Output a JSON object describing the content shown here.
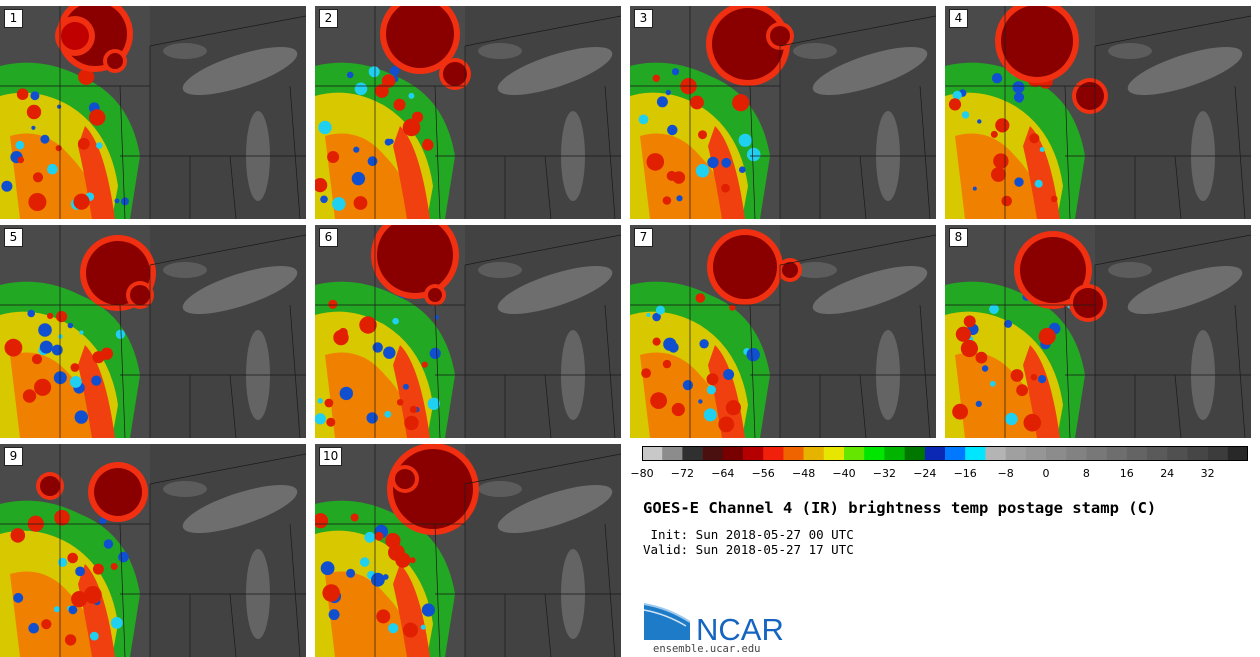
{
  "panels": [
    {
      "label": "1",
      "blobs": [
        {
          "x": 95,
          "y": 28,
          "r": 32,
          "c": "#8a0000"
        },
        {
          "x": 75,
          "y": 30,
          "r": 14,
          "c": "#c00000"
        }
      ],
      "extra": {
        "x": 115,
        "y": 55,
        "r": 8
      }
    },
    {
      "label": "2",
      "blobs": [
        {
          "x": 105,
          "y": 28,
          "r": 34,
          "c": "#8a0000"
        }
      ],
      "extra": {
        "x": 140,
        "y": 68,
        "r": 12
      }
    },
    {
      "label": "3",
      "blobs": [
        {
          "x": 118,
          "y": 38,
          "r": 36,
          "c": "#8a0000"
        }
      ],
      "extra": {
        "x": 150,
        "y": 30,
        "r": 10
      }
    },
    {
      "label": "4",
      "blobs": [
        {
          "x": 92,
          "y": 35,
          "r": 36,
          "c": "#8a0000"
        }
      ],
      "extra": {
        "x": 145,
        "y": 90,
        "r": 14
      }
    },
    {
      "label": "5",
      "blobs": [
        {
          "x": 118,
          "y": 48,
          "r": 32,
          "c": "#8a0000"
        }
      ],
      "extra": {
        "x": 140,
        "y": 70,
        "r": 10
      }
    },
    {
      "label": "6",
      "blobs": [
        {
          "x": 100,
          "y": 30,
          "r": 38,
          "c": "#8a0000"
        }
      ],
      "extra": {
        "x": 120,
        "y": 70,
        "r": 7
      }
    },
    {
      "label": "7",
      "blobs": [
        {
          "x": 115,
          "y": 42,
          "r": 32,
          "c": "#8a0000"
        }
      ],
      "extra": {
        "x": 160,
        "y": 45,
        "r": 8
      }
    },
    {
      "label": "8",
      "blobs": [
        {
          "x": 108,
          "y": 45,
          "r": 33,
          "c": "#8a0000"
        }
      ],
      "extra": {
        "x": 143,
        "y": 78,
        "r": 15
      }
    },
    {
      "label": "9",
      "blobs": [
        {
          "x": 118,
          "y": 48,
          "r": 24,
          "c": "#8a0000"
        }
      ],
      "extra": {
        "x": 50,
        "y": 42,
        "r": 10
      }
    },
    {
      "label": "10",
      "blobs": [
        {
          "x": 118,
          "y": 45,
          "r": 40,
          "c": "#8a0000"
        }
      ],
      "extra": {
        "x": 90,
        "y": 35,
        "r": 10
      }
    }
  ],
  "colorbar": {
    "colors": [
      "#c8c8c8",
      "#8c8c8c",
      "#303030",
      "#4a1010",
      "#780000",
      "#b40000",
      "#f0200a",
      "#f06400",
      "#e6b400",
      "#e6e600",
      "#64e600",
      "#00e600",
      "#00b400",
      "#007800",
      "#0a28b4",
      "#0078ff",
      "#00e6ff",
      "#b4b4b4",
      "#a0a0a0",
      "#969696",
      "#8c8c8c",
      "#828282",
      "#787878",
      "#6e6e6e",
      "#646464",
      "#5a5a5a",
      "#505050",
      "#464646",
      "#3c3c3c",
      "#282828"
    ],
    "ticks": [
      "−80",
      "−72",
      "−64",
      "−56",
      "−48",
      "−40",
      "−32",
      "−24",
      "−16",
      "−8",
      "0",
      "8",
      "16",
      "24",
      "32"
    ]
  },
  "title": "GOES-E Channel 4 (IR) brightness temp postage stamp (C)",
  "init": " Init: Sun 2018-05-27 00 UTC",
  "valid": "Valid: Sun 2018-05-27 17 UTC",
  "logo": {
    "text": "NCAR",
    "url": "ensemble.ucar.edu",
    "brand_color": "#1565c0"
  }
}
